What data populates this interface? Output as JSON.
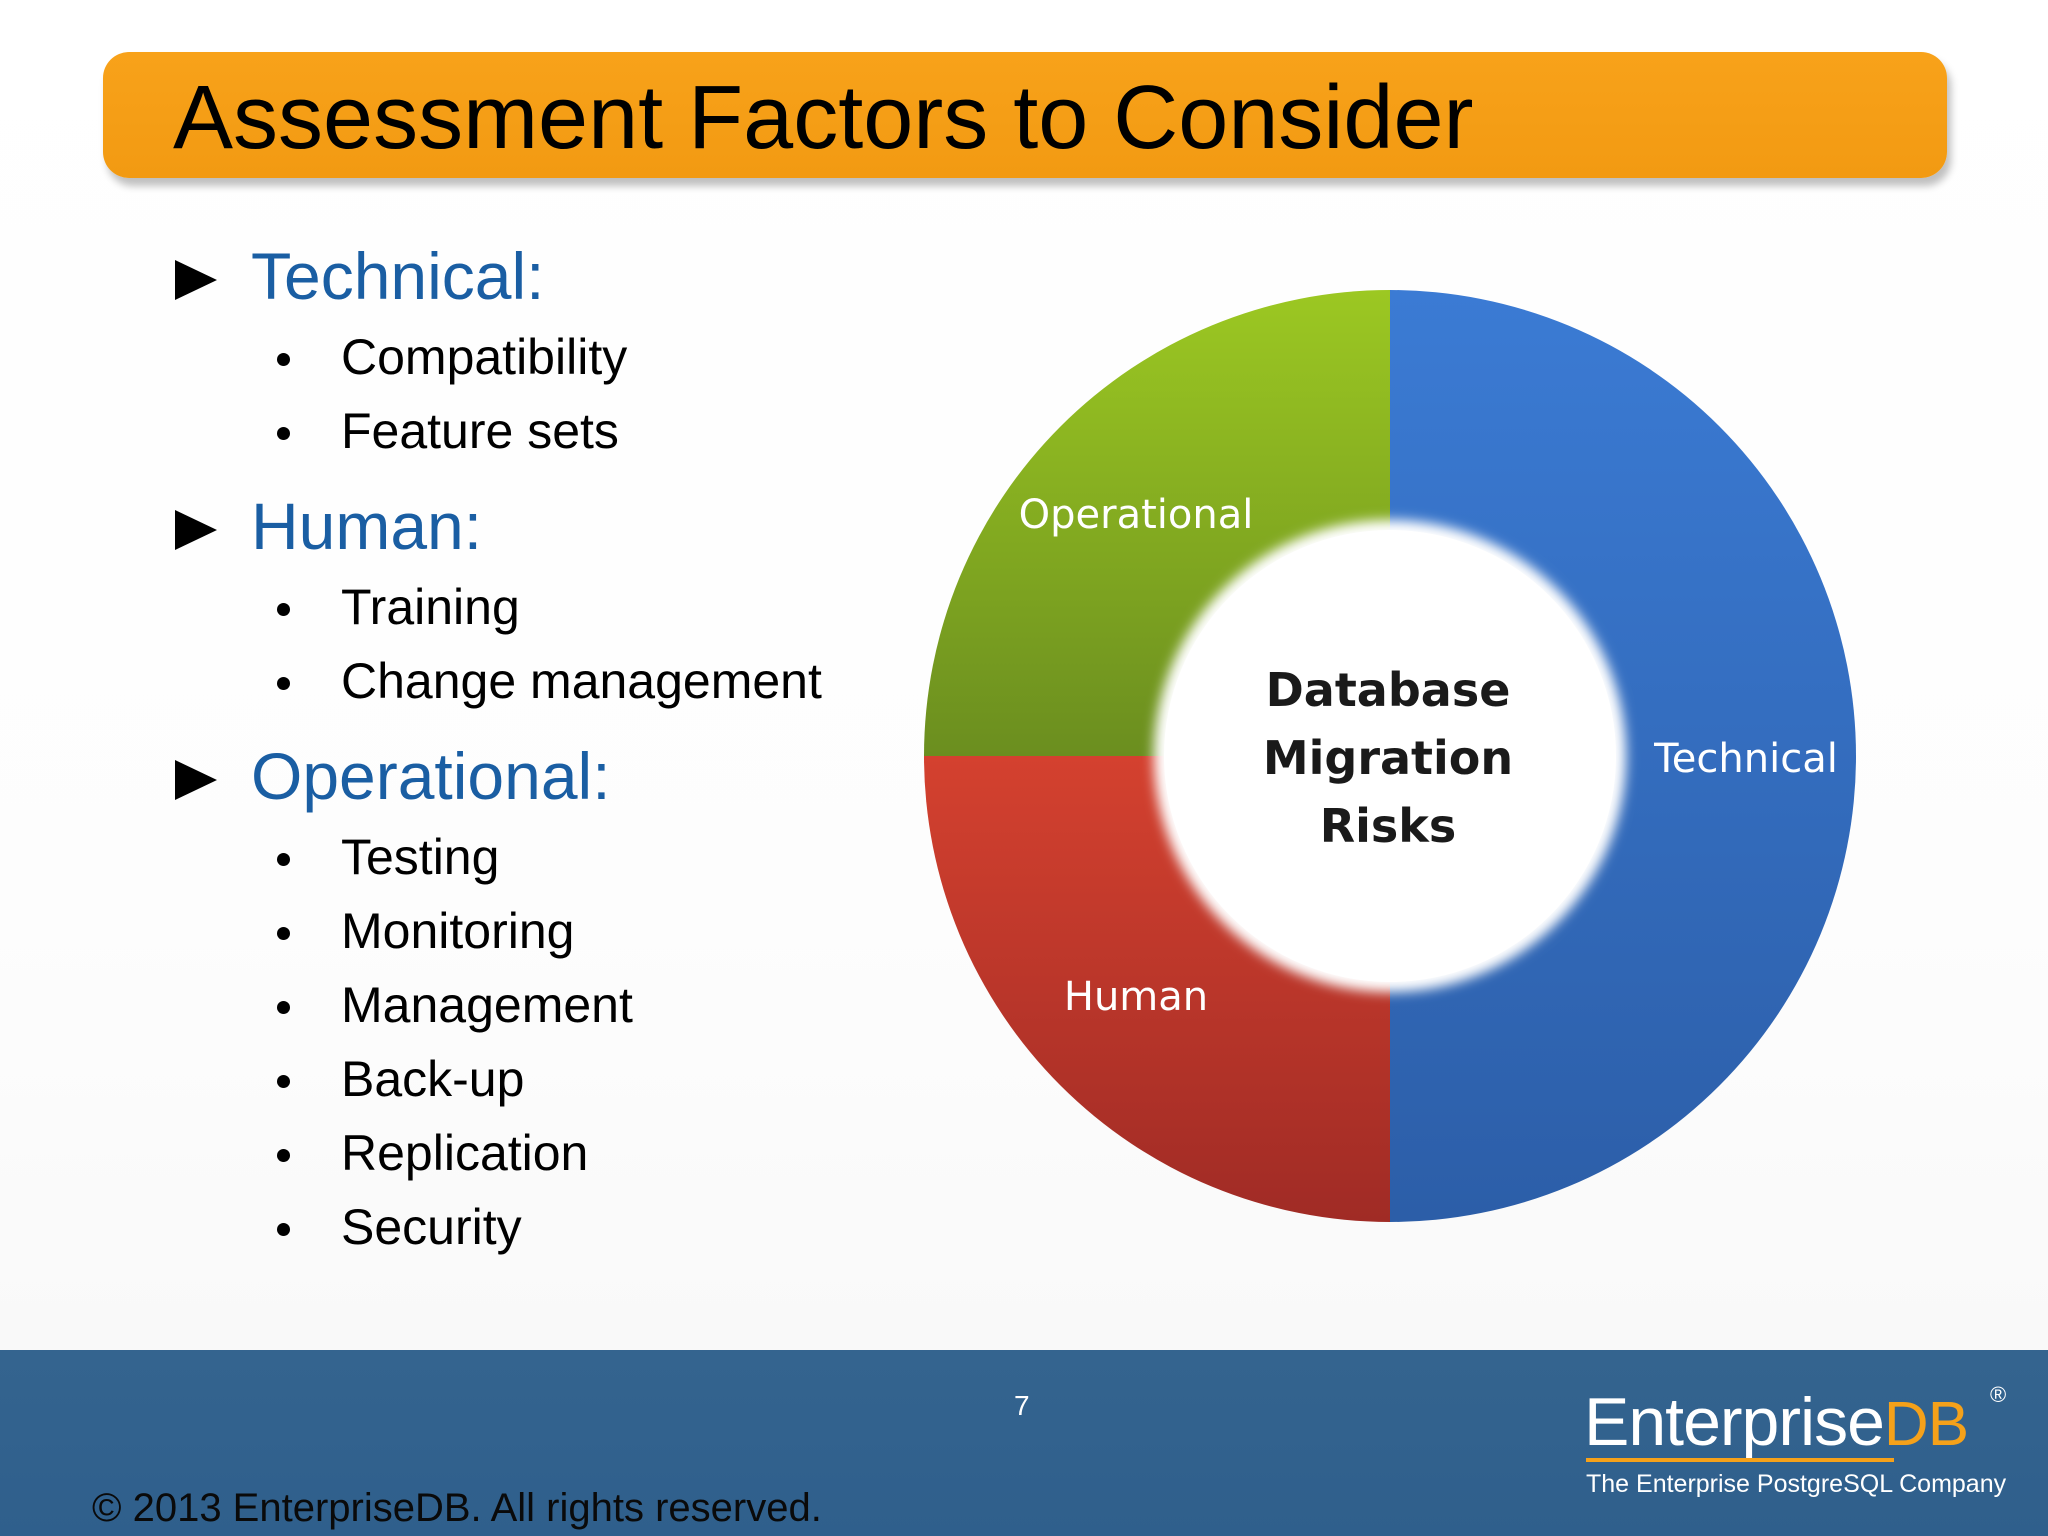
{
  "slide": {
    "title": "Assessment Factors to Consider",
    "sections": [
      {
        "label": "Technical:",
        "items": [
          "Compatibility",
          "Feature sets"
        ]
      },
      {
        "label": "Human:",
        "items": [
          "Training",
          "Change management"
        ]
      },
      {
        "label": "Operational:",
        "items": [
          "Testing",
          "Monitoring",
          "Management",
          "Back-up",
          "Replication",
          "Security"
        ]
      }
    ]
  },
  "chart_data": {
    "type": "pie",
    "style": "donut",
    "center_label": [
      "Database",
      "Migration",
      "Risks"
    ],
    "slices": [
      {
        "label": "Technical",
        "value": 50,
        "color": "#3a72c4"
      },
      {
        "label": "Human",
        "value": 25,
        "color": "#c23b2e"
      },
      {
        "label": "Operational",
        "value": 25,
        "color": "#8cb420"
      }
    ]
  },
  "footer": {
    "page_number": "7",
    "copyright": "© 2013  EnterpriseDB. All rights reserved.",
    "logo_main": "Enterprise",
    "logo_db": "DB",
    "logo_registered": "®",
    "logo_tagline": "The Enterprise PostgreSQL Company"
  },
  "colors": {
    "title_bar": "#f5a01a",
    "section_heading": "#1a5ea3",
    "footer_bg": "#2f5f8c"
  }
}
